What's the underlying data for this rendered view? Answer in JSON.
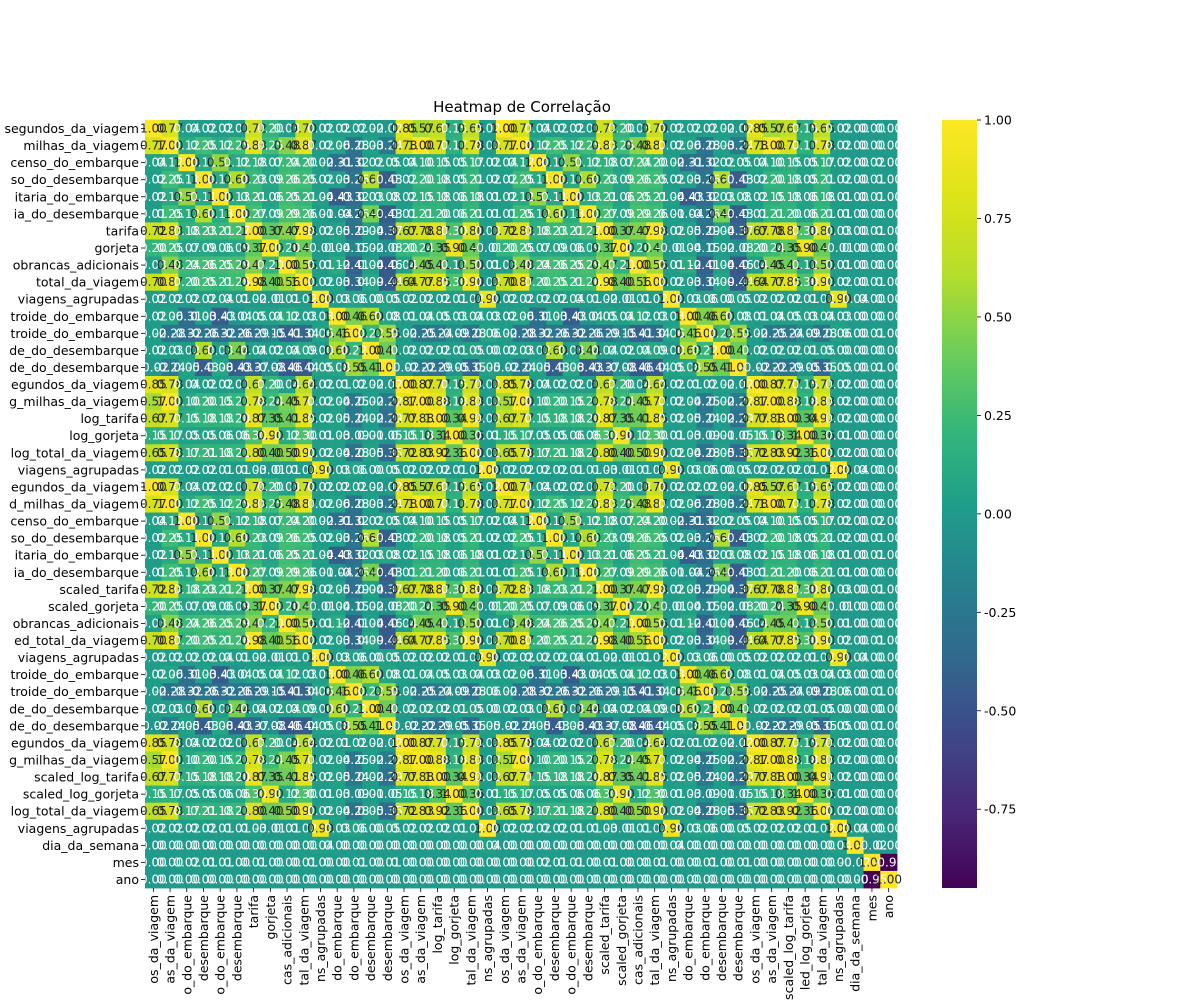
{
  "chart_data": {
    "type": "heatmap",
    "title": "Heatmap de Correlação",
    "xlabel": "",
    "ylabel": "",
    "colormap": "viridis",
    "annotations": "values printed in cells, 2 decimals",
    "colorbar": {
      "range": [
        -0.95,
        1.0
      ],
      "ticks": [
        "1.00",
        "0.75",
        "0.50",
        "0.25",
        "0.00",
        "-0.25",
        "-0.50",
        "-0.75"
      ],
      "tick_values": [
        1.0,
        0.75,
        0.5,
        0.25,
        0.0,
        -0.25,
        -0.5,
        -0.75
      ]
    },
    "row_labels": [
      "segundos_da_viagem",
      "milhas_da_viagem",
      "censo_do_embarque",
      "so_do_desembarque",
      "itaria_do_embarque",
      "ia_do_desembarque",
      "tarifa",
      "gorjeta",
      "obrancas_adicionais",
      "total_da_viagem",
      "viagens_agrupadas",
      "troide_do_embarque",
      "troide_do_embarque",
      "de_do_desembarque",
      "de_do_desembarque",
      "egundos_da_viagem",
      "g_milhas_da_viagem",
      "log_tarifa",
      "log_gorjeta",
      "log_total_da_viagem",
      "viagens_agrupadas",
      "egundos_da_viagem",
      "d_milhas_da_viagem",
      "censo_do_embarque",
      "so_do_desembarque",
      "itaria_do_embarque",
      "ia_do_desembarque",
      "scaled_tarifa",
      "scaled_gorjeta",
      "obrancas_adicionais",
      "ed_total_da_viagem",
      "viagens_agrupadas",
      "troide_do_embarque",
      "troide_do_embarque",
      "de_do_desembarque",
      "de_do_desembarque",
      "egundos_da_viagem",
      "g_milhas_da_viagem",
      "scaled_log_tarifa",
      "scaled_log_gorjeta",
      "log_total_da_viagem",
      "viagens_agrupadas",
      "dia_da_semana",
      "mes",
      "ano"
    ],
    "col_labels": [
      "os_da_viagem",
      "as_da_viagem",
      "o_do_embarque",
      "desembarque",
      "o_do_embarque",
      "desembarque",
      "tarifa",
      "gorjeta",
      "cas_adicionais",
      "tal_da_viagem",
      "ns_agrupadas",
      "do_embarque",
      "do_embarque",
      "desembarque",
      "desembarque",
      "os_da_viagem",
      "as_da_viagem",
      "log_tarifa",
      "log_gorjeta",
      "tal_da_viagem",
      "ns_agrupadas",
      "os_da_viagem",
      "as_da_viagem",
      "o_do_embarque",
      "desembarque",
      "o_do_embarque",
      "desembarque",
      "scaled_tarifa",
      "scaled_gorjeta",
      "cas_adicionais",
      "tal_da_viagem",
      "ns_agrupadas",
      "do_embarque",
      "do_embarque",
      "desembarque",
      "desembarque",
      "os_da_viagem",
      "as_da_viagem",
      "scaled_log_tarifa",
      "led_log_gorjeta",
      "tal_da_viagem",
      "ns_agrupadas",
      "dia_da_semana",
      "mes",
      "ano"
    ],
    "base_groups": [
      0,
      1,
      2,
      3,
      4,
      5,
      6,
      7,
      8,
      9,
      10,
      11,
      12,
      13,
      14,
      15,
      16,
      17,
      18,
      19,
      20,
      0,
      1,
      2,
      3,
      4,
      5,
      6,
      7,
      8,
      9,
      10,
      11,
      12,
      13,
      14,
      15,
      16,
      17,
      18,
      19,
      20,
      21,
      22,
      23
    ],
    "base_matrix": [
      [
        1.0,
        0.77,
        0.04,
        0.02,
        0.02,
        0.01,
        0.72,
        0.2,
        0.03,
        0.7,
        0.02,
        0.02,
        0.02,
        0.02,
        -0.02,
        0.85,
        0.57,
        0.67,
        0.15,
        0.65,
        0.02,
        0.0,
        0.0,
        0.0
      ],
      [
        0.77,
        1.0,
        0.12,
        0.25,
        0.12,
        0.25,
        0.83,
        0.25,
        0.48,
        0.87,
        0.02,
        0.06,
        -0.28,
        0.03,
        -0.24,
        0.78,
        1.0,
        0.77,
        0.17,
        0.78,
        0.02,
        0.0,
        0.0,
        0.0
      ],
      [
        0.04,
        0.12,
        1.0,
        0.11,
        0.51,
        0.12,
        0.18,
        0.07,
        0.24,
        0.2,
        0.02,
        -0.31,
        -0.32,
        0.02,
        0.05,
        0.04,
        0.1,
        0.15,
        0.05,
        0.17,
        0.02,
        0.0,
        0.02,
        0.0
      ],
      [
        0.02,
        0.25,
        0.11,
        1.0,
        0.11,
        0.6,
        0.23,
        0.09,
        0.26,
        0.25,
        0.02,
        0.03,
        -0.26,
        0.6,
        -0.43,
        0.02,
        0.2,
        0.18,
        0.05,
        0.21,
        0.02,
        0.0,
        0.01,
        0.0
      ],
      [
        0.02,
        0.12,
        0.51,
        0.11,
        1.0,
        0.13,
        0.21,
        0.06,
        0.25,
        0.21,
        0.04,
        -0.43,
        -0.32,
        0.03,
        0.08,
        0.02,
        0.15,
        0.18,
        0.06,
        0.18,
        0.01,
        0.0,
        0.01,
        0.0
      ],
      [
        0.01,
        0.25,
        0.12,
        0.6,
        0.13,
        1.0,
        0.27,
        0.09,
        0.29,
        0.26,
        0.01,
        -0.04,
        -0.26,
        0.44,
        -0.43,
        0.01,
        0.21,
        0.2,
        0.06,
        0.21,
        0.01,
        0.0,
        0.0,
        0.0
      ],
      [
        0.72,
        0.83,
        0.18,
        0.23,
        0.21,
        0.27,
        1.0,
        0.37,
        0.47,
        0.98,
        0.02,
        0.05,
        -0.29,
        0.04,
        -0.37,
        0.67,
        0.78,
        0.87,
        0.3,
        0.8,
        0.03,
        0.0,
        0.01,
        0.0
      ],
      [
        0.2,
        0.25,
        0.07,
        0.09,
        0.06,
        0.09,
        0.37,
        1.0,
        0.2,
        0.4,
        -0.01,
        0.04,
        -0.15,
        0.02,
        -0.08,
        0.2,
        0.24,
        0.35,
        0.9,
        0.4,
        -0.01,
        0.0,
        0.0,
        0.0
      ],
      [
        0.03,
        0.48,
        0.24,
        0.26,
        0.25,
        0.29,
        0.47,
        0.2,
        1.0,
        0.56,
        0.01,
        0.12,
        -0.41,
        0.04,
        -0.46,
        0.04,
        0.45,
        0.41,
        0.12,
        0.5,
        0.01,
        0.0,
        0.0,
        0.0
      ],
      [
        0.7,
        0.87,
        0.2,
        0.25,
        0.21,
        0.26,
        0.98,
        0.4,
        0.56,
        1.0,
        0.02,
        0.03,
        -0.34,
        0.09,
        -0.44,
        0.64,
        0.77,
        0.85,
        0.3,
        0.9,
        0.02,
        0.0,
        0.01,
        0.0
      ],
      [
        0.02,
        0.02,
        0.02,
        0.02,
        0.04,
        0.01,
        0.02,
        -0.01,
        0.01,
        0.02,
        1.0,
        0.03,
        0.06,
        0.0,
        0.05,
        0.02,
        0.02,
        0.02,
        0.01,
        0.02,
        0.9,
        0.04,
        0.0,
        0.0
      ],
      [
        0.02,
        0.06,
        -0.31,
        0.03,
        -0.43,
        -0.04,
        0.05,
        0.04,
        0.12,
        0.03,
        0.03,
        1.0,
        0.46,
        0.6,
        0.08,
        0.01,
        0.04,
        0.05,
        0.03,
        0.04,
        0.03,
        0.0,
        0.0,
        0.0
      ],
      [
        0.02,
        -0.28,
        -0.32,
        -0.26,
        -0.32,
        -0.26,
        -0.29,
        -0.15,
        -0.41,
        -0.34,
        0.06,
        0.46,
        1.0,
        0.22,
        0.55,
        0.02,
        -0.25,
        -0.24,
        -0.09,
        -0.28,
        0.06,
        0.0,
        0.01,
        0.0
      ],
      [
        0.02,
        0.03,
        0.02,
        0.6,
        0.03,
        0.44,
        0.04,
        0.02,
        0.04,
        0.09,
        0.0,
        0.6,
        0.22,
        1.0,
        0.41,
        0.02,
        0.02,
        0.02,
        0.01,
        0.05,
        0.0,
        0.0,
        0.0,
        0.0
      ],
      [
        -0.02,
        -0.24,
        0.05,
        -0.43,
        0.08,
        -0.43,
        -0.37,
        -0.08,
        -0.46,
        -0.44,
        0.05,
        0.08,
        0.55,
        0.41,
        1.0,
        -0.02,
        -0.22,
        -0.29,
        -0.05,
        -0.35,
        0.05,
        0.0,
        0.01,
        0.0
      ],
      [
        0.85,
        0.78,
        0.04,
        0.02,
        0.02,
        0.01,
        0.67,
        0.2,
        0.04,
        0.64,
        0.02,
        0.01,
        0.02,
        0.02,
        -0.02,
        1.0,
        0.87,
        0.77,
        0.15,
        0.72,
        0.02,
        0.0,
        0.0,
        0.0
      ],
      [
        0.57,
        1.0,
        0.1,
        0.2,
        0.15,
        0.21,
        0.78,
        0.24,
        0.45,
        0.77,
        0.02,
        0.04,
        -0.25,
        0.02,
        -0.22,
        0.87,
        1.0,
        0.88,
        0.18,
        0.83,
        0.02,
        0.0,
        0.0,
        0.0
      ],
      [
        0.67,
        0.77,
        0.15,
        0.18,
        0.18,
        0.2,
        0.87,
        0.35,
        0.41,
        0.85,
        0.02,
        0.05,
        -0.24,
        0.02,
        -0.29,
        0.77,
        0.88,
        1.0,
        0.34,
        0.92,
        0.02,
        0.0,
        0.0,
        0.0
      ],
      [
        0.15,
        0.17,
        0.05,
        0.05,
        0.06,
        0.06,
        0.3,
        0.9,
        0.12,
        0.3,
        0.01,
        0.03,
        -0.09,
        0.01,
        -0.05,
        0.15,
        0.18,
        0.34,
        1.0,
        0.36,
        0.01,
        0.0,
        0.0,
        0.0
      ],
      [
        0.65,
        0.78,
        0.17,
        0.21,
        0.18,
        0.21,
        0.8,
        0.4,
        0.5,
        0.9,
        0.02,
        0.04,
        -0.28,
        0.05,
        -0.35,
        0.72,
        0.83,
        0.92,
        0.36,
        1.0,
        0.02,
        0.0,
        0.0,
        0.0
      ],
      [
        0.02,
        0.02,
        0.02,
        0.02,
        0.01,
        0.01,
        0.03,
        -0.01,
        0.01,
        0.02,
        0.9,
        0.03,
        0.06,
        0.0,
        0.05,
        0.02,
        0.02,
        0.02,
        0.01,
        0.02,
        1.0,
        0.04,
        0.0,
        0.0
      ],
      [
        0.0,
        0.0,
        0.0,
        0.0,
        0.0,
        0.0,
        0.0,
        0.0,
        0.0,
        0.0,
        0.04,
        0.0,
        0.0,
        0.0,
        0.0,
        0.0,
        0.0,
        0.0,
        0.0,
        0.0,
        0.04,
        1.0,
        -0.02,
        0.0
      ],
      [
        0.0,
        0.0,
        0.02,
        0.01,
        0.01,
        0.0,
        0.01,
        0.0,
        0.0,
        0.01,
        0.0,
        0.0,
        0.01,
        0.0,
        0.01,
        0.0,
        0.0,
        0.0,
        0.0,
        0.0,
        0.0,
        -0.02,
        1.0,
        -0.95
      ],
      [
        0.0,
        0.0,
        0.0,
        0.0,
        0.0,
        0.0,
        0.0,
        0.0,
        0.0,
        0.0,
        0.0,
        0.0,
        0.0,
        0.0,
        0.0,
        0.0,
        0.0,
        0.0,
        0.0,
        0.0,
        0.0,
        0.0,
        -0.95,
        1.0
      ]
    ]
  }
}
